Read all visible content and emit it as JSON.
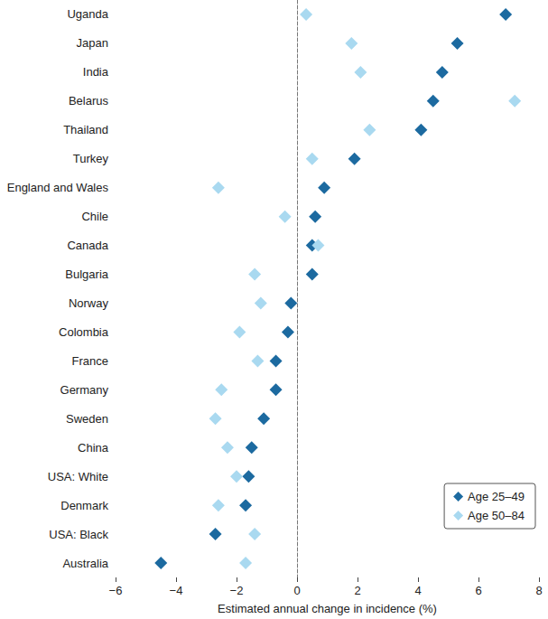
{
  "chart_data": {
    "type": "scatter",
    "orientation": "horizontal",
    "categories": [
      "Uganda",
      "Japan",
      "India",
      "Belarus",
      "Thailand",
      "Turkey",
      "England and Wales",
      "Chile",
      "Canada",
      "Bulgaria",
      "Norway",
      "Colombia",
      "France",
      "Germany",
      "Sweden",
      "China",
      "USA: White",
      "Denmark",
      "USA: Black",
      "Australia"
    ],
    "series": [
      {
        "name": "Age 25–49",
        "color": "#1c6aa0",
        "marker": "diamond",
        "values": [
          6.9,
          5.3,
          4.8,
          4.5,
          4.1,
          1.9,
          0.9,
          0.6,
          0.5,
          0.5,
          -0.2,
          -0.3,
          -0.7,
          -0.7,
          -1.1,
          -1.5,
          -1.6,
          -1.7,
          -2.7,
          -4.5
        ]
      },
      {
        "name": "Age 50–84",
        "color": "#a9d9f0",
        "marker": "diamond",
        "values": [
          0.3,
          1.8,
          2.1,
          7.2,
          2.4,
          0.5,
          -2.6,
          -0.4,
          0.7,
          -1.4,
          -1.2,
          -1.9,
          -1.3,
          -2.5,
          -2.7,
          -2.3,
          -2.0,
          -2.6,
          -1.4,
          -1.7
        ]
      }
    ],
    "x_label": "Estimated annual change in incidence (%)",
    "xlim": [
      -6,
      8
    ],
    "xticks": [
      {
        "value": -6,
        "label": "−6"
      },
      {
        "value": -4,
        "label": "−4"
      },
      {
        "value": -2,
        "label": "−2"
      },
      0,
      2,
      4,
      6,
      8
    ],
    "grid": false,
    "legend": "lower right"
  }
}
